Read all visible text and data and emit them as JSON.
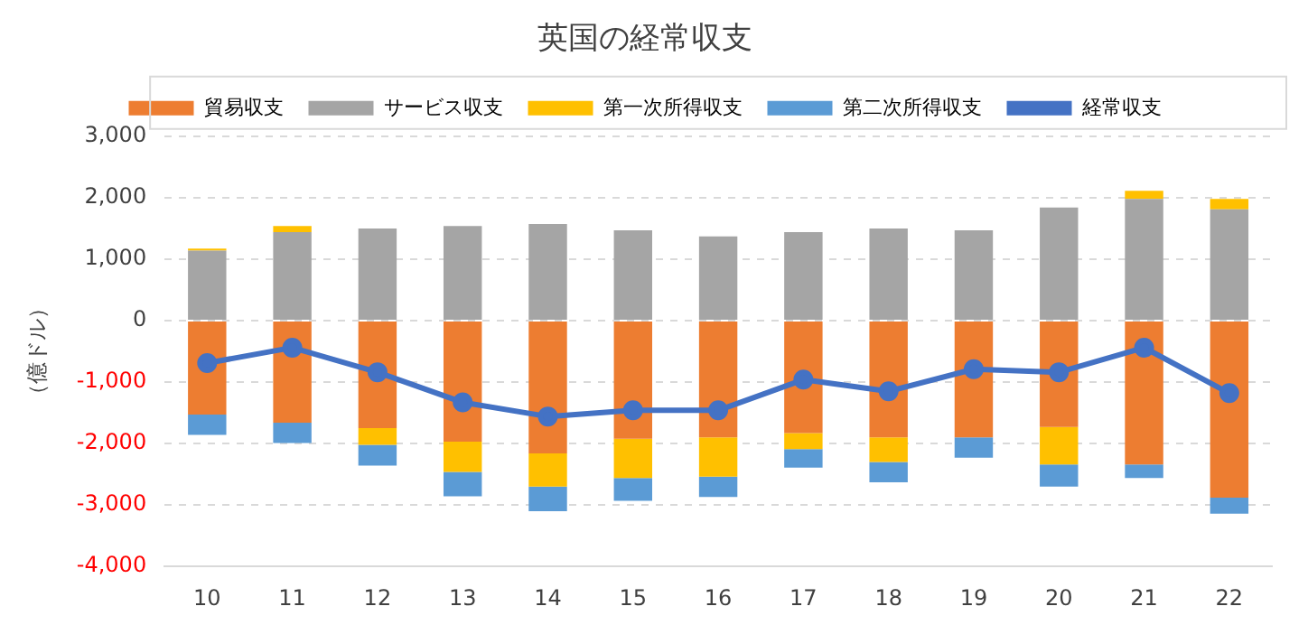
{
  "chart_data": {
    "type": "bar",
    "title": "英国の経常収支",
    "ylabel": "（億ドル）",
    "stacked": true,
    "categories": [
      "10",
      "11",
      "12",
      "13",
      "14",
      "15",
      "16",
      "17",
      "18",
      "19",
      "20",
      "21",
      "22"
    ],
    "series": [
      {
        "name": "貿易収支",
        "color": "#ed7d31",
        "values": [
          -1530,
          -1660,
          -1750,
          -1970,
          -2160,
          -1920,
          -1900,
          -1830,
          -1900,
          -1900,
          -1730,
          -2340,
          -2880
        ]
      },
      {
        "name": "サービス収支",
        "color": "#a5a5a5",
        "values": [
          1140,
          1440,
          1500,
          1540,
          1570,
          1470,
          1370,
          1440,
          1500,
          1470,
          1840,
          1980,
          1810
        ]
      },
      {
        "name": "第一次所得収支",
        "color": "#ffc000",
        "values": [
          30,
          100,
          -270,
          -490,
          -540,
          -640,
          -640,
          -260,
          -400,
          0,
          -610,
          130,
          170
        ]
      },
      {
        "name": "第二次所得収支",
        "color": "#5b9bd5",
        "values": [
          -330,
          -330,
          -340,
          -400,
          -400,
          -370,
          -330,
          -300,
          -330,
          -330,
          -360,
          -220,
          -260
        ]
      },
      {
        "name": "経常収支",
        "type": "line",
        "color": "#4472c4",
        "marker": "circle",
        "values": [
          -690,
          -440,
          -840,
          -1330,
          -1560,
          -1460,
          -1460,
          -960,
          -1150,
          -790,
          -840,
          -440,
          -1180
        ]
      }
    ],
    "ylim": [
      -4000,
      3000
    ],
    "yticks": [
      {
        "value": -4000,
        "label": "-4,000"
      },
      {
        "value": -3000,
        "label": "-3,000"
      },
      {
        "value": -2000,
        "label": "-2,000"
      },
      {
        "value": -1000,
        "label": "-1,000"
      },
      0,
      {
        "value": 1000,
        "label": "1,000"
      },
      {
        "value": 2000,
        "label": "2,000"
      },
      {
        "value": 3000,
        "label": "3,000"
      }
    ],
    "grid": "y",
    "legend": "top"
  }
}
